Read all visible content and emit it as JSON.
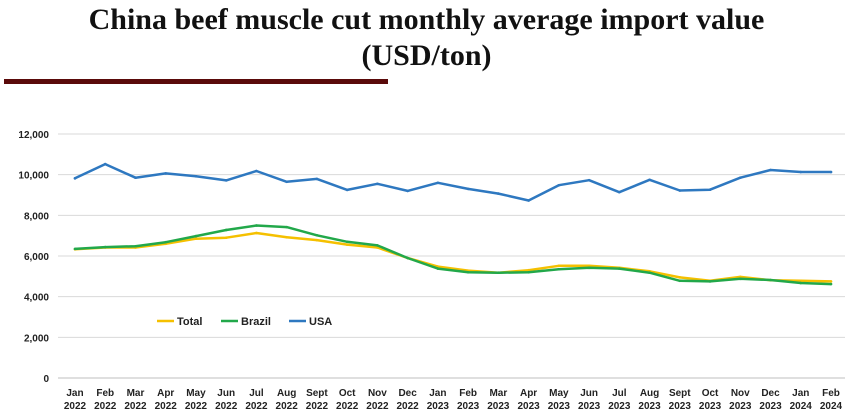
{
  "header": {
    "title_line1": "China beef  muscle cut monthly average import value",
    "title_line2": "(USD/ton)"
  },
  "chart_data": {
    "type": "line",
    "title": "China beef  muscle cut monthly average import value (USD/ton)",
    "xlabel": "",
    "ylabel": "",
    "ylim": [
      0,
      12000
    ],
    "yticks": [
      "0",
      "2,000",
      "4,000",
      "6,000",
      "8,000",
      "10,000",
      "12,000"
    ],
    "grid": "horizontal",
    "legend": "bottom-left inside plot",
    "categories": [
      [
        "Jan",
        "2022"
      ],
      [
        "Feb",
        "2022"
      ],
      [
        "Mar",
        "2022"
      ],
      [
        "Apr",
        "2022"
      ],
      [
        "May",
        "2022"
      ],
      [
        "Jun",
        "2022"
      ],
      [
        "Jul",
        "2022"
      ],
      [
        "Aug",
        "2022"
      ],
      [
        "Sept",
        "2022"
      ],
      [
        "Oct",
        "2022"
      ],
      [
        "Nov",
        "2022"
      ],
      [
        "Dec",
        "2022"
      ],
      [
        "Jan",
        "2023"
      ],
      [
        "Feb",
        "2023"
      ],
      [
        "Mar",
        "2023"
      ],
      [
        "Apr",
        "2023"
      ],
      [
        "May",
        "2023"
      ],
      [
        "Jun",
        "2023"
      ],
      [
        "Jul",
        "2023"
      ],
      [
        "Aug",
        "2023"
      ],
      [
        "Sept",
        "2023"
      ],
      [
        "Oct",
        "2023"
      ],
      [
        "Nov",
        "2023"
      ],
      [
        "Dec",
        "2023"
      ],
      [
        "Jan",
        "2024"
      ],
      [
        "Feb",
        "2024"
      ]
    ],
    "series": [
      {
        "name": "Total",
        "color": "#f5c000",
        "values": [
          6330,
          6420,
          6420,
          6600,
          6850,
          6900,
          7130,
          6920,
          6780,
          6560,
          6420,
          5900,
          5480,
          5280,
          5180,
          5300,
          5520,
          5520,
          5420,
          5250,
          4950,
          4780,
          4970,
          4810,
          4780,
          4750
        ]
      },
      {
        "name": "Brazil",
        "color": "#22a84a",
        "values": [
          6350,
          6440,
          6480,
          6680,
          6980,
          7280,
          7500,
          7420,
          7020,
          6700,
          6520,
          5900,
          5380,
          5200,
          5180,
          5200,
          5350,
          5420,
          5380,
          5180,
          4780,
          4750,
          4880,
          4820,
          4670,
          4620
        ]
      },
      {
        "name": "USA",
        "color": "#2e78c0",
        "values": [
          9820,
          10520,
          9850,
          10060,
          9920,
          9720,
          10180,
          9650,
          9790,
          9250,
          9550,
          9200,
          9600,
          9300,
          9070,
          8730,
          9480,
          9730,
          9140,
          9750,
          9220,
          9260,
          9850,
          10230,
          10130,
          10130
        ]
      }
    ]
  }
}
